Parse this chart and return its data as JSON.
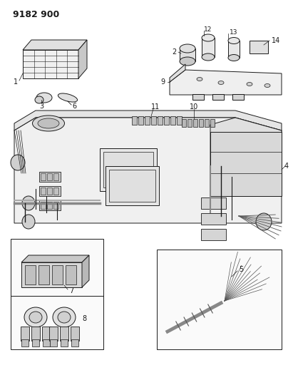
{
  "title": "9182 900",
  "background_color": "#ffffff",
  "fig_width": 4.11,
  "fig_height": 5.33,
  "dpi": 100,
  "line_color": "#1a1a1a",
  "gray_light": "#d8d8d8",
  "gray_mid": "#b8b8b8",
  "gray_dark": "#888888"
}
